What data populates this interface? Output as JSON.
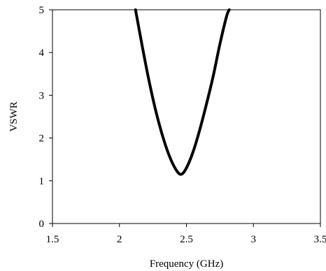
{
  "chart_data": {
    "type": "line",
    "title": "",
    "xlabel": "Frequency (GHz)",
    "ylabel": "VSWR",
    "xlim": [
      1.5,
      3.5
    ],
    "ylim": [
      0,
      5
    ],
    "x_ticks": [
      "1.5",
      "2",
      "2.5",
      "3",
      "3.5"
    ],
    "y_ticks": [
      "0",
      "1",
      "2",
      "3",
      "4",
      "5"
    ],
    "grid": false,
    "legend": "none",
    "series": [
      {
        "color": "#000000",
        "x": [
          2.12,
          2.17,
          2.22,
          2.27,
          2.32,
          2.37,
          2.42,
          2.46,
          2.5,
          2.55,
          2.6,
          2.65,
          2.7,
          2.75,
          2.8,
          2.82
        ],
        "y": [
          5.0,
          4.15,
          3.35,
          2.65,
          2.07,
          1.6,
          1.27,
          1.15,
          1.3,
          1.68,
          2.2,
          2.8,
          3.45,
          4.2,
          4.85,
          5.0
        ]
      }
    ]
  }
}
